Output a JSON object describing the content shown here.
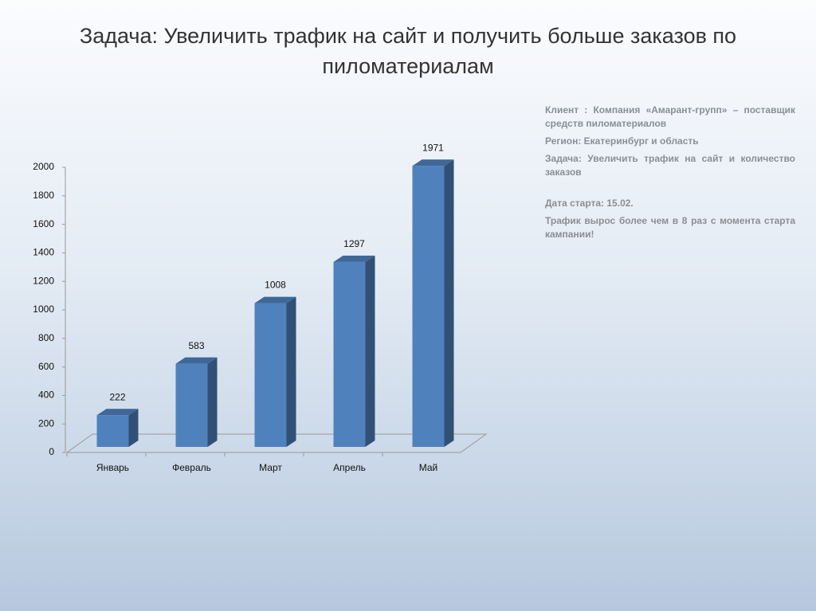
{
  "chart_data": {
    "type": "bar3d",
    "title": "Задача: Увеличить трафик на сайт и получить больше заказов по пиломатериалам",
    "categories": [
      "Январь",
      "Февраль",
      "Март",
      "Апрель",
      "Май"
    ],
    "values": [
      222,
      583,
      1008,
      1297,
      1971
    ],
    "color": "#4f81bd",
    "ylim": [
      0,
      2000
    ],
    "yticks": [
      0,
      200,
      400,
      600,
      800,
      1000,
      1200,
      1400,
      1600,
      1800,
      2000
    ],
    "grid": false,
    "annotations": [
      "Клиент : Компания «Амарант-групп» – поставщик средств пиломатериалов",
      "Регион:  Екатеринбург и область",
      "Задача:  Увеличить трафик на сайт и количество заказов",
      "Дата старта: 15.02.",
      "Трафик вырос более чем в 8 раз с момента старта кампании!"
    ]
  }
}
